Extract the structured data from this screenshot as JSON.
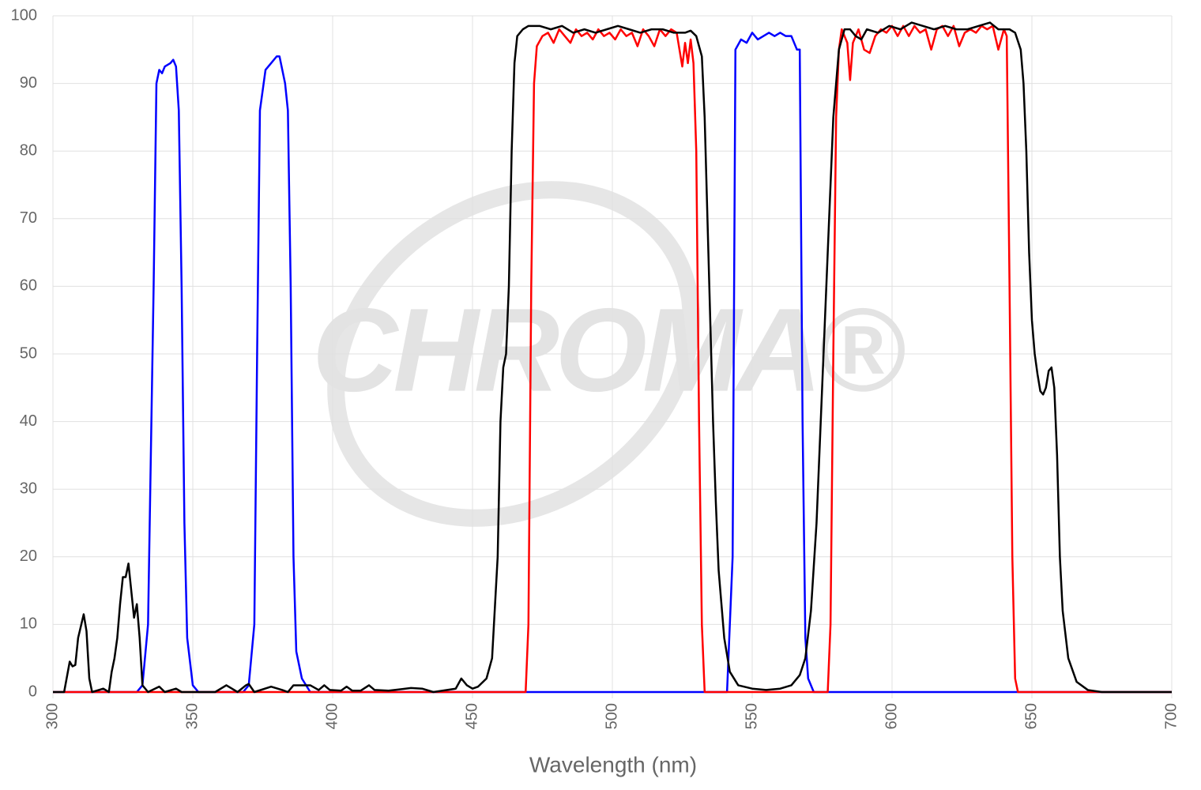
{
  "chart_data": {
    "type": "line",
    "x_label": "Wavelength (nm)",
    "watermark": "CHROMA®",
    "xlim": [
      300,
      700
    ],
    "xticks": [
      300,
      350,
      400,
      450,
      500,
      550,
      600,
      650,
      700
    ],
    "ylim": [
      0,
      100
    ],
    "yticks": [
      0,
      10,
      20,
      30,
      40,
      50,
      60,
      70,
      80,
      90,
      100
    ],
    "grid": true,
    "series": [
      {
        "color": "#0000ff",
        "x": [
          300,
          330,
          332,
          334,
          336,
          337,
          338,
          339,
          340,
          342,
          343,
          344,
          345,
          346,
          347,
          348,
          350,
          352,
          368,
          370,
          372,
          373,
          374,
          376,
          378,
          380,
          381,
          382,
          383,
          384,
          385,
          386,
          387,
          389,
          392,
          541,
          543,
          544,
          546,
          548,
          550,
          552,
          554,
          556,
          558,
          560,
          562,
          564,
          566,
          567,
          568,
          569,
          570,
          572,
          700
        ],
        "values": [
          0,
          0,
          1,
          10,
          60,
          90,
          92,
          91.5,
          92.5,
          93,
          93.5,
          92.5,
          86,
          60,
          25,
          8,
          1,
          0,
          0,
          1,
          10,
          50,
          86,
          92,
          93,
          94,
          94,
          92,
          90,
          86,
          60,
          20,
          6,
          2,
          0,
          0,
          20,
          95,
          96.5,
          96,
          97.5,
          96.5,
          97,
          97.5,
          97,
          97.5,
          97,
          97,
          95,
          95,
          40,
          8,
          2,
          0,
          0
        ]
      },
      {
        "color": "#ff0000",
        "x": [
          300,
          469,
          470,
          471,
          472,
          473,
          475,
          477,
          479,
          481,
          483,
          485,
          487,
          489,
          491,
          493,
          495,
          497,
          499,
          501,
          503,
          505,
          507,
          509,
          511,
          513,
          515,
          517,
          519,
          521,
          523,
          525,
          526,
          527,
          528,
          529,
          530,
          531,
          532,
          533,
          577,
          578,
          579,
          580,
          581,
          582,
          584,
          585,
          586,
          588,
          590,
          592,
          594,
          596,
          598,
          600,
          602,
          604,
          606,
          608,
          610,
          612,
          614,
          616,
          618,
          620,
          622,
          624,
          626,
          628,
          630,
          632,
          634,
          636,
          638,
          640,
          641,
          642,
          643,
          644,
          645,
          700
        ],
        "values": [
          0,
          0,
          10,
          60,
          90,
          95.5,
          97,
          97.5,
          96,
          98,
          97,
          96,
          98,
          97,
          97.5,
          96.5,
          98,
          97,
          97.5,
          96.5,
          98,
          97,
          97.5,
          95.5,
          98,
          97,
          95.5,
          98,
          97,
          98,
          97.5,
          92.5,
          96,
          93,
          96.5,
          93,
          80,
          40,
          10,
          0,
          0,
          10,
          50,
          85,
          95,
          98,
          96,
          90.5,
          96,
          98,
          95,
          94.5,
          97,
          98,
          97.5,
          98.5,
          97,
          98.5,
          97,
          98.5,
          97.5,
          98,
          95,
          98,
          98.5,
          97,
          98.5,
          95.5,
          97.5,
          98,
          97.5,
          98.5,
          98,
          98.5,
          95,
          98,
          97,
          60,
          20,
          2,
          0,
          0
        ]
      },
      {
        "color": "#000000",
        "x": [
          300,
          304,
          306,
          307,
          308,
          309,
          311,
          312,
          313,
          314,
          318,
          320,
          321,
          322,
          323,
          324,
          325,
          326,
          327,
          328,
          329,
          330,
          331,
          332,
          334,
          338,
          340,
          344,
          346,
          358,
          362,
          364,
          366,
          369,
          370,
          372,
          378,
          382,
          384,
          386,
          388,
          392,
          395,
          397,
          399,
          403,
          405,
          407,
          410,
          413,
          415,
          420,
          428,
          432,
          436,
          444,
          446,
          448,
          450,
          452,
          455,
          457,
          459,
          460,
          461,
          462,
          463,
          464,
          465,
          466,
          468,
          470,
          474,
          478,
          482,
          486,
          490,
          494,
          498,
          502,
          506,
          510,
          514,
          518,
          522,
          526,
          528,
          530,
          532,
          533,
          534,
          535,
          536,
          537,
          538,
          540,
          542,
          545,
          550,
          555,
          560,
          564,
          567,
          569,
          571,
          573,
          575,
          577,
          579,
          581,
          583,
          585,
          587,
          589,
          591,
          595,
          599,
          603,
          607,
          611,
          615,
          619,
          623,
          627,
          631,
          635,
          638,
          640,
          642,
          644,
          646,
          647,
          648,
          649,
          650,
          651,
          652,
          653,
          654,
          655,
          656,
          657,
          658,
          659,
          660,
          661,
          663,
          666,
          670,
          675,
          700
        ],
        "values": [
          0,
          0,
          4.5,
          3.8,
          4,
          8,
          11.5,
          9,
          2,
          0,
          0.5,
          0,
          3,
          5,
          8,
          13,
          17,
          17,
          19,
          15,
          11,
          13,
          8,
          1,
          0,
          0.8,
          0,
          0.5,
          0,
          0,
          1,
          0.5,
          0,
          1,
          1.2,
          0,
          0.8,
          0.3,
          0,
          1,
          1,
          1,
          0.3,
          1,
          0.3,
          0.2,
          0.8,
          0.2,
          0.2,
          1,
          0.3,
          0.2,
          0.6,
          0.5,
          0,
          0.5,
          2,
          1,
          0.5,
          0.8,
          2,
          5,
          20,
          40,
          48,
          50,
          60,
          80,
          93,
          97,
          98,
          98.5,
          98.5,
          98,
          98.5,
          97.5,
          98,
          97.5,
          98,
          98.5,
          98,
          97.5,
          98,
          98,
          97.5,
          97.5,
          97.8,
          97,
          94,
          85,
          70,
          55,
          40,
          28,
          18,
          8,
          3,
          1,
          0.5,
          0.3,
          0.5,
          1,
          2.5,
          5,
          12,
          25,
          45,
          65,
          85,
          95,
          98,
          98,
          97,
          96.5,
          98,
          97.5,
          98.5,
          98,
          99,
          98.5,
          98,
          98.5,
          98,
          98,
          98.5,
          99,
          98,
          98,
          98,
          97.5,
          95,
          90,
          80,
          65,
          55,
          50,
          47,
          44.5,
          44,
          45,
          47.5,
          48,
          45,
          35,
          20,
          12,
          5,
          1.5,
          0.3,
          0,
          0
        ]
      }
    ]
  }
}
